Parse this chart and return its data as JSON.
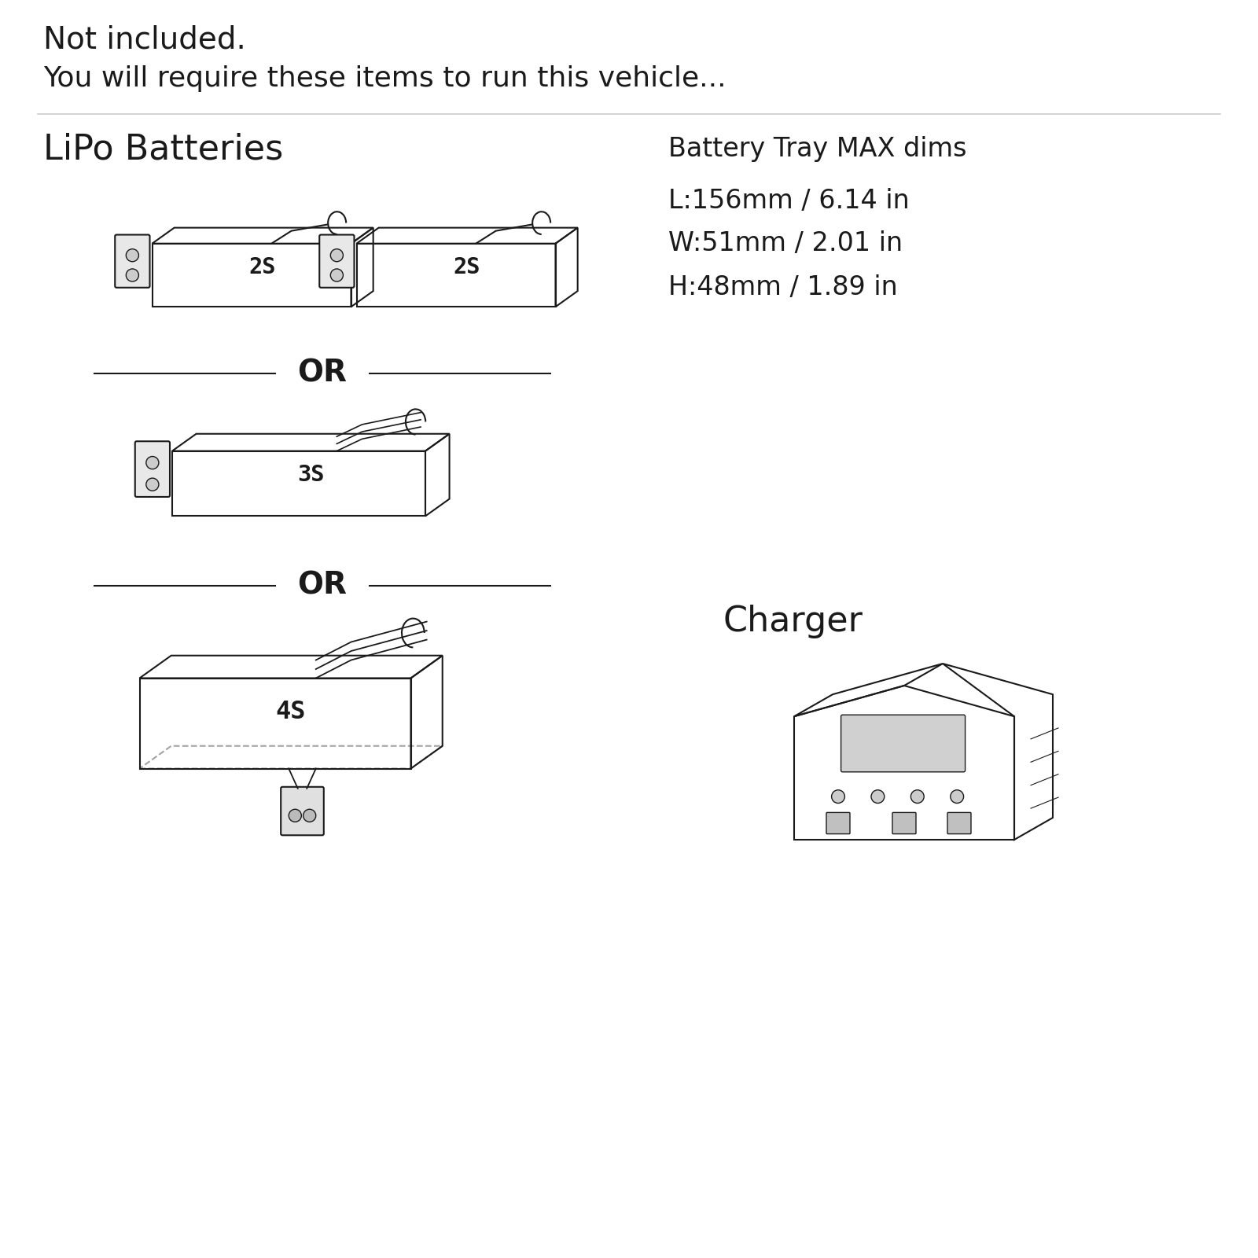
{
  "bg_color": "#ffffff",
  "line_color": "#1a1a1a",
  "text_color": "#1a1a1a",
  "title_line1": "Not included.",
  "title_line2": "You will require these items to run this vehicle...",
  "section_lipo": "LiPo Batteries",
  "section_charger": "Charger",
  "battery_tray_title": "Battery Tray MAX dims",
  "battery_tray_L": "L:156mm / 6.14 in",
  "battery_tray_W": "W:51mm / 2.01 in",
  "battery_tray_H": "H:48mm / 1.89 in",
  "or_text": "OR",
  "font_title_size": 28,
  "font_section_size": 32,
  "font_body_size": 26,
  "font_label_size": 22
}
